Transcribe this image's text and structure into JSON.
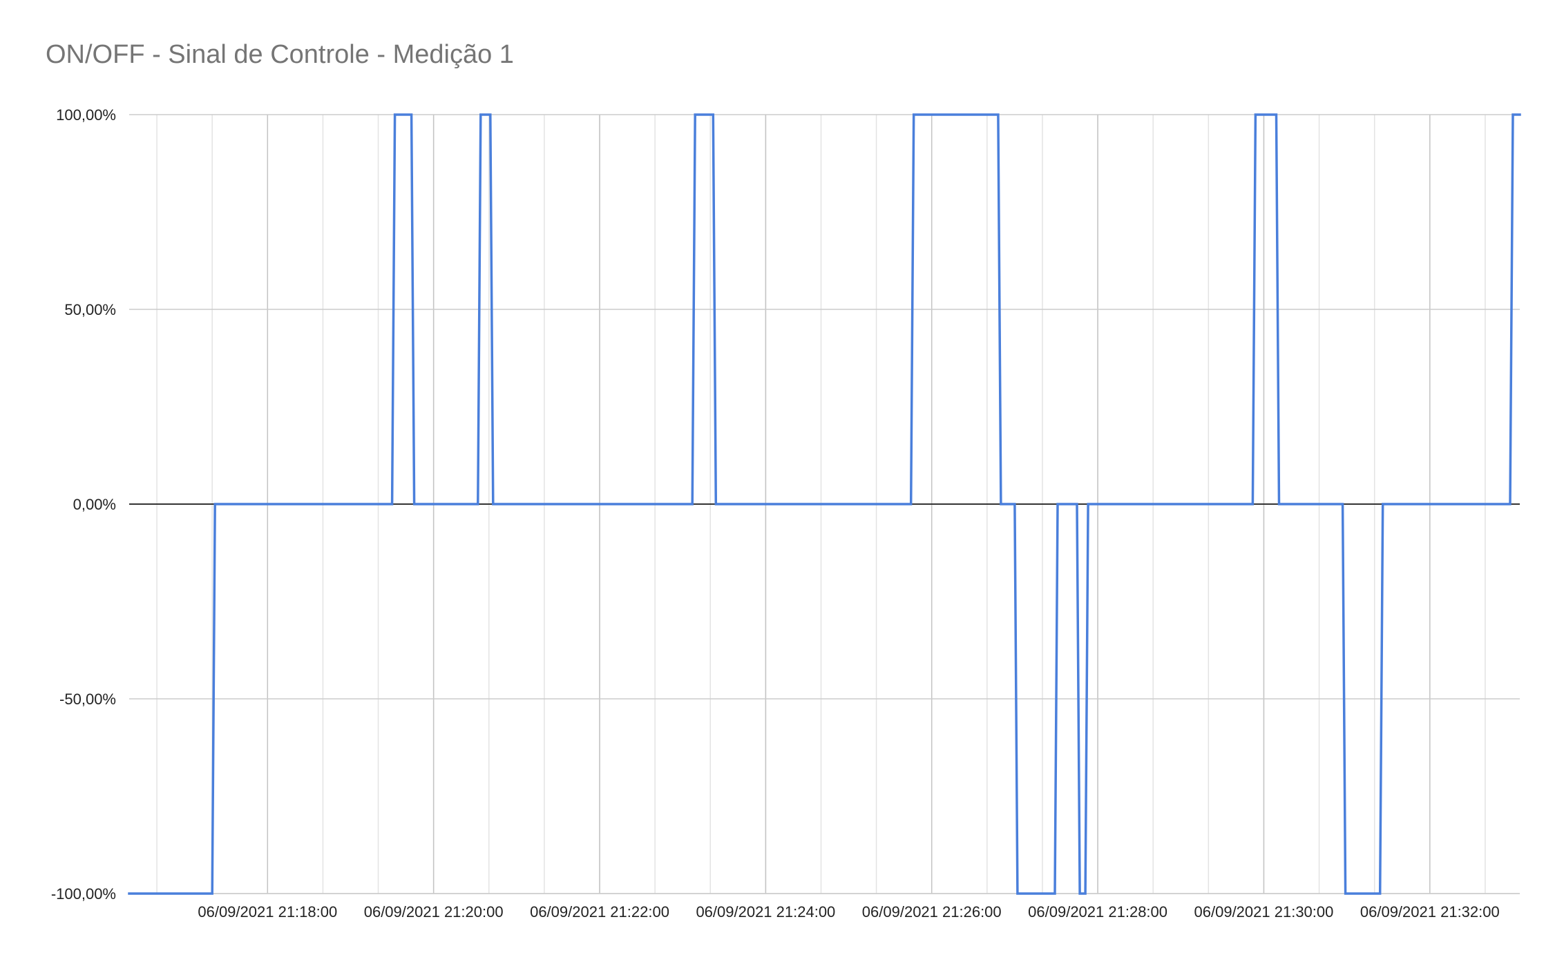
{
  "chart_data": {
    "type": "line",
    "title": "ON/OFF - Sinal de Controle - Medição 1",
    "xlabel": "",
    "ylabel": "",
    "ylim": [
      -1,
      1
    ],
    "y_ticks": [
      {
        "value": 1,
        "label": "100,00%"
      },
      {
        "value": 0.5,
        "label": "50,00%"
      },
      {
        "value": 0,
        "label": "0,00%"
      },
      {
        "value": -0.5,
        "label": "-50,00%"
      },
      {
        "value": -1,
        "label": "-100,00%"
      }
    ],
    "x_range": [
      "21:16:20",
      "21:33:05"
    ],
    "x_ticks": [
      {
        "time": "21:18:00",
        "label": "06/09/2021 21:18:00"
      },
      {
        "time": "21:20:00",
        "label": "06/09/2021 21:20:00"
      },
      {
        "time": "21:22:00",
        "label": "06/09/2021 21:22:00"
      },
      {
        "time": "21:24:00",
        "label": "06/09/2021 21:24:00"
      },
      {
        "time": "21:26:00",
        "label": "06/09/2021 21:26:00"
      },
      {
        "time": "21:28:00",
        "label": "06/09/2021 21:28:00"
      },
      {
        "time": "21:30:00",
        "label": "06/09/2021 21:30:00"
      },
      {
        "time": "21:32:00",
        "label": "06/09/2021 21:32:00"
      }
    ],
    "grid": true,
    "line_color": "#4a7fdb",
    "series": [
      {
        "points": [
          [
            "21:16:20",
            -1
          ],
          [
            "21:17:20",
            -1
          ],
          [
            "21:17:22",
            0
          ],
          [
            "21:19:30",
            0
          ],
          [
            "21:19:32",
            1
          ],
          [
            "21:19:44",
            1
          ],
          [
            "21:19:46",
            0
          ],
          [
            "21:20:32",
            0
          ],
          [
            "21:20:34",
            1
          ],
          [
            "21:20:41",
            1
          ],
          [
            "21:20:43",
            0
          ],
          [
            "21:23:07",
            0
          ],
          [
            "21:23:09",
            1
          ],
          [
            "21:23:22",
            1
          ],
          [
            "21:23:24",
            0
          ],
          [
            "21:25:45",
            0
          ],
          [
            "21:25:47",
            1
          ],
          [
            "21:26:48",
            1
          ],
          [
            "21:26:50",
            0
          ],
          [
            "21:27:00",
            0
          ],
          [
            "21:27:02",
            -1
          ],
          [
            "21:27:29",
            -1
          ],
          [
            "21:27:31",
            0
          ],
          [
            "21:27:45",
            0
          ],
          [
            "21:27:47",
            -1
          ],
          [
            "21:27:51",
            -1
          ],
          [
            "21:27:53",
            0
          ],
          [
            "21:29:52",
            0
          ],
          [
            "21:29:54",
            1
          ],
          [
            "21:30:09",
            1
          ],
          [
            "21:30:11",
            0
          ],
          [
            "21:30:57",
            0
          ],
          [
            "21:30:59",
            -1
          ],
          [
            "21:31:24",
            -1
          ],
          [
            "21:31:26",
            0
          ],
          [
            "21:32:58",
            0
          ],
          [
            "21:33:00",
            1
          ],
          [
            "21:33:05",
            1
          ]
        ]
      }
    ]
  }
}
